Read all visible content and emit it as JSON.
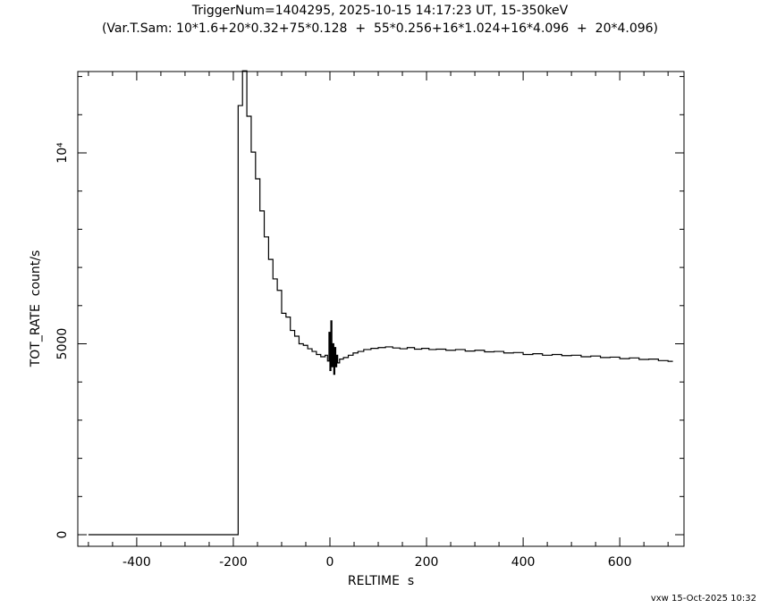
{
  "chart_data": {
    "type": "step",
    "title": "TriggerNum=1404295, 2025-10-15 14:17:23 UT, 15-350keV",
    "subtitle": "(Var.T.Sam: 10*1.6+20*0.32+75*0.128  +  55*0.256+16*1.024+16*4.096  +  20*4.096)",
    "x_label": "RELTIME  s",
    "y_label": "TOT_RATE  count/s",
    "footer": "vxw 15-Oct-2025 10:32",
    "color": "#000000",
    "xlim": [
      -522,
      733
    ],
    "ylim": [
      -304,
      12131
    ],
    "xticks": [
      -400,
      -200,
      0,
      200,
      400,
      600
    ],
    "yticks": [
      0,
      5000,
      {
        "value": 10000,
        "label": "10⁴"
      }
    ],
    "xminorticks": [
      -500,
      -450,
      -350,
      -300,
      -250,
      -150,
      -100,
      -50,
      50,
      100,
      150,
      250,
      300,
      350,
      450,
      500,
      550,
      650,
      700
    ],
    "yminorticks": [
      1000,
      2000,
      3000,
      4000,
      6000,
      7000,
      8000,
      9000,
      11000,
      12000
    ],
    "x": [
      -500,
      -190,
      -181,
      -172,
      -163,
      -154,
      -145,
      -136,
      -127,
      -118,
      -109,
      -100,
      -91,
      -82,
      -73,
      -64,
      -55,
      -46,
      -37,
      -28,
      -19,
      -10,
      -5,
      -2,
      0,
      2,
      4,
      6,
      8,
      10,
      12,
      14,
      16,
      20,
      28,
      38,
      48,
      58,
      70,
      85,
      100,
      115,
      130,
      145,
      160,
      175,
      190,
      205,
      220,
      240,
      260,
      280,
      300,
      320,
      340,
      360,
      380,
      400,
      420,
      440,
      460,
      480,
      500,
      520,
      540,
      560,
      580,
      600,
      620,
      640,
      660,
      680,
      700,
      710
    ],
    "values": [
      0,
      11240,
      12150,
      10960,
      10020,
      9320,
      8480,
      7800,
      7210,
      6700,
      6400,
      5800,
      5700,
      5350,
      5200,
      5000,
      4960,
      4870,
      4800,
      4720,
      4660,
      4700,
      4550,
      5300,
      4300,
      5600,
      4400,
      5000,
      4200,
      4900,
      4400,
      4700,
      4500,
      4600,
      4640,
      4700,
      4760,
      4800,
      4850,
      4880,
      4900,
      4920,
      4890,
      4870,
      4900,
      4860,
      4880,
      4850,
      4860,
      4830,
      4850,
      4810,
      4830,
      4790,
      4800,
      4760,
      4770,
      4720,
      4740,
      4700,
      4720,
      4690,
      4700,
      4660,
      4680,
      4640,
      4650,
      4610,
      4630,
      4590,
      4600,
      4560,
      4540,
      4540
    ]
  }
}
